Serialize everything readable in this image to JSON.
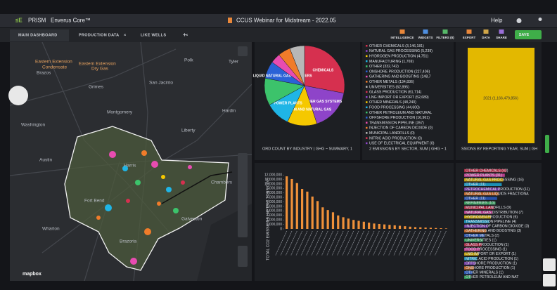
{
  "header": {
    "logo": "PRISM",
    "product": "Enverus Core™",
    "workspace": "CCUS Webinar for Midstream - 2022.05",
    "help": "Help"
  },
  "tabs": [
    "MAIN DASHBOARD",
    "PRODUCTION DATA",
    "LIKE WELLS"
  ],
  "new_tab": "+",
  "toolbar": [
    "INTELLIGENCE",
    "WIDGETS",
    "FILTERS (8)",
    "EXPORT",
    "DATA",
    "SHARE"
  ],
  "save": "SAVE",
  "map": {
    "labels": [
      "Eastern Extension",
      "Condensate",
      "Eastern Extension",
      "Dry Gas",
      "Polk",
      "Tyler",
      "Brazos",
      "Grimes",
      "San Jacinto",
      "Montgomery",
      "Hardin",
      "Washington",
      "Liberty",
      "Austin",
      "Harris",
      "Chambers",
      "Fort Bend",
      "Galveston",
      "Wharton",
      "Brazoria"
    ],
    "attribution": "mapbox"
  },
  "pie": {
    "caption": "ORD COUNT BY INDUSTRY | GHG ~ SUMMARY, 1",
    "labels": [
      "CHEMICALS",
      "OTHER GAS SYSTEMS",
      "PETROLEUM AND NATURAL GAS",
      "POWER PLANTS",
      null,
      "LIQUID NATURAL GAS SUPPLIERS",
      null,
      null,
      null
    ],
    "values": [
      28,
      17,
      12,
      10,
      11,
      7,
      4,
      5,
      6
    ],
    "colors": [
      "#d6304f",
      "#8e44c9",
      "#f5c800",
      "#1fb5e6",
      "#3cc36b",
      "#2a62d6",
      "#e84cb1",
      "#f07c2a",
      "#b7b7b7"
    ]
  },
  "sector_list": {
    "caption": "2 EMISSIONS BY SECTOR, SUM | GHG ~ 1",
    "items": [
      "OTHER CHEMICALS (3,146,181)",
      "NATURAL GAS PROCESSING (5,239)",
      "HYDROGEN PRODUCTION (4,751)",
      "MANUFACTURING (1,769)",
      "OTHER (332,742)",
      "ONSHORE PRODUCTION (227,406)",
      "GATHERING AND BOOSTING (148,7",
      "OTHER METALS (134,836)",
      "UNIVERSITIES (62,895)",
      "GLASS PRODUCTION (61,714)",
      "LNG IMPORT OR EXPORT (52,689)",
      "OTHER MINERALS (48,240)",
      "FOOD PROCESSING (44,600)",
      "OTHER PETROLEUM AND NATURAL",
      "OFFSHORE PRODUCTION (16,961)",
      "TRANSMISSION PIPELINE (357)",
      "INJECTION OF CARBON DIOXIDE (0)",
      "MUNICIPAL LANDFILLS (0)",
      "NITRIC ACID PRODUCTION (0)",
      "USE OF ELECTRICAL EQUIPMENT (0)"
    ]
  },
  "year_chart": {
    "caption": "SSIONS BY REPORTING YEAR, SUM | GH",
    "bar_label": "2021 (1,166,479,856)",
    "color": "#e3b800"
  },
  "bar_chart": {
    "type": "bar",
    "y_label": "TOTAL CO2 EMISSIONS (METRIC TONS CO2)",
    "color": "#f0913a",
    "ylim": [
      0,
      12500000
    ],
    "yticks": [
      0,
      {
        "value": 1000000,
        "label": "1,000,000"
      },
      {
        "value": 2000000,
        "label": "2,000,000"
      },
      {
        "value": 3000000,
        "label": "3,000,000"
      },
      {
        "value": 4000000,
        "label": "4,000,000"
      },
      {
        "value": 5000000,
        "label": "5,000,000"
      },
      {
        "value": 6000000,
        "label": "6,000,000"
      },
      {
        "value": 7000000,
        "label": "7,000,000"
      },
      {
        "value": 8000000,
        "label": "8,000,000"
      },
      {
        "value": 9000000,
        "label": "9,000,000"
      },
      {
        "value": 10000000,
        "label": "10,000,000"
      },
      {
        "value": 11000000,
        "label": "11,000,000"
      },
      {
        "value": 12000000,
        "label": "12,000,000"
      }
    ],
    "values": [
      11700000,
      11100000,
      10200000,
      8900000,
      8300000,
      7200000,
      6200000,
      4800000,
      4200000,
      3700000,
      3000000,
      2600000,
      2300000,
      2000000,
      1800000,
      1600000,
      1400000,
      1200000,
      1100000,
      1000000,
      900000,
      800000,
      700000,
      600000,
      500000,
      400000,
      350000,
      300000,
      250000,
      200000,
      150000,
      100000
    ]
  },
  "facility_list": {
    "items": [
      "OTHER CHEMICALS (43)",
      "POWER PLANTS (31)",
      "NATURAL GAS PROCESSING (16)",
      "OTHER (11)",
      "PETROCHEMICAL PRODUCTION (11)",
      "NATURAL GAS LIQUIDS FRACTIONA",
      "OTHER (11)",
      "REFINERIES (10)",
      "MUNICIPAL LANDFILLS (9)",
      "NATURAL GAS DISTRIBUTION (7)",
      "HYDROGEN PRODUCTION (6)",
      "TRANSMISSION PIPELINE (4)",
      "INJECTION OF CARBON DIOXIDE (3)",
      "GATHERING AND BOOSTING (3)",
      "OTHER METALS (2)",
      "UNIVERSITIES (1)",
      "GLASS PRODUCTION (1)",
      "FOOD PROCESSING (1)",
      "LNG IMPORT OR EXPORT (1)",
      "NITRIC ACID PRODUCTION (1)",
      "OFFSHORE PRODUCTION (1)",
      "ONSHORE PRODUCTION (1)",
      "OTHER MINERALS (1)",
      "OTHER PETROLEUM AND NAT"
    ]
  }
}
